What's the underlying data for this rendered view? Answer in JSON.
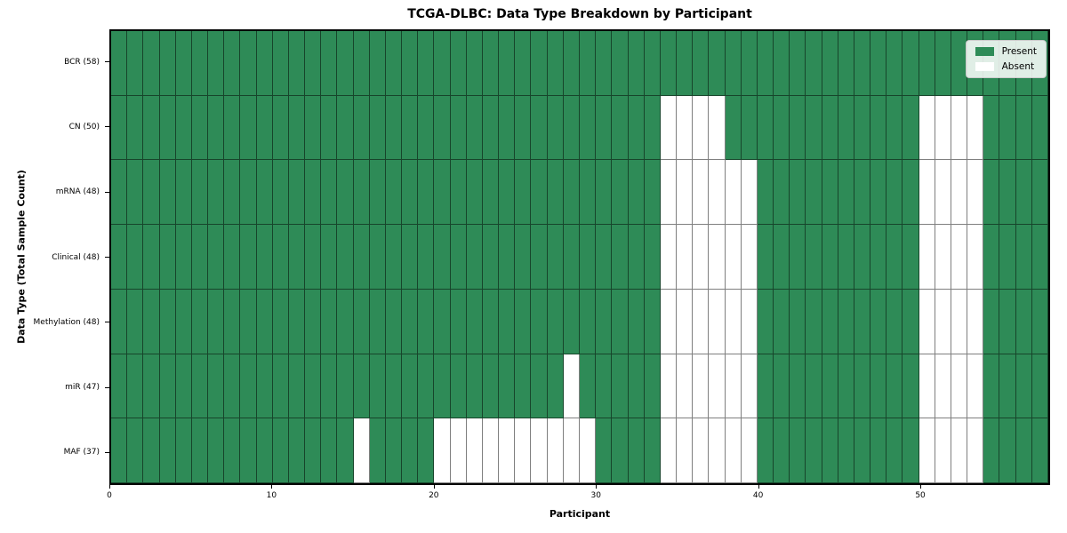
{
  "chart_data": {
    "type": "heatmap",
    "title": "TCGA-DLBC: Data Type Breakdown by Participant",
    "xlabel": "Participant",
    "ylabel": "Data Type (Total Sample Count)",
    "n_participants": 58,
    "x_range": [
      0,
      58
    ],
    "x_ticks": [
      0,
      10,
      20,
      30,
      40,
      50
    ],
    "grid": true,
    "legend_position": "upper right",
    "colors": {
      "present": "#2e8b57",
      "absent": "#ffffff",
      "grid_line": "rgba(0,0,0,0.5)",
      "spine": "#000000"
    },
    "legend": [
      {
        "label": "Present",
        "color": "#2e8b57"
      },
      {
        "label": "Absent",
        "color": "#ffffff"
      }
    ],
    "rows": [
      {
        "label": "BCR (58)",
        "total": 58,
        "absent_participants": []
      },
      {
        "label": "CN (50)",
        "total": 50,
        "absent_participants": [
          34,
          35,
          36,
          37,
          50,
          51,
          52,
          53
        ]
      },
      {
        "label": "mRNA (48)",
        "total": 48,
        "absent_participants": [
          34,
          35,
          36,
          37,
          38,
          39,
          50,
          51,
          52,
          53
        ]
      },
      {
        "label": "Clinical (48)",
        "total": 48,
        "absent_participants": [
          34,
          35,
          36,
          37,
          38,
          39,
          50,
          51,
          52,
          53
        ]
      },
      {
        "label": "Methylation (48)",
        "total": 48,
        "absent_participants": [
          34,
          35,
          36,
          37,
          38,
          39,
          50,
          51,
          52,
          53
        ]
      },
      {
        "label": "miR (47)",
        "total": 47,
        "absent_participants": [
          28,
          34,
          35,
          36,
          37,
          38,
          39,
          50,
          51,
          52,
          53
        ]
      },
      {
        "label": "MAF (37)",
        "total": 37,
        "absent_participants": [
          15,
          20,
          21,
          22,
          23,
          24,
          25,
          26,
          27,
          28,
          29,
          34,
          35,
          36,
          37,
          38,
          39,
          50,
          51,
          52,
          53
        ]
      }
    ]
  }
}
